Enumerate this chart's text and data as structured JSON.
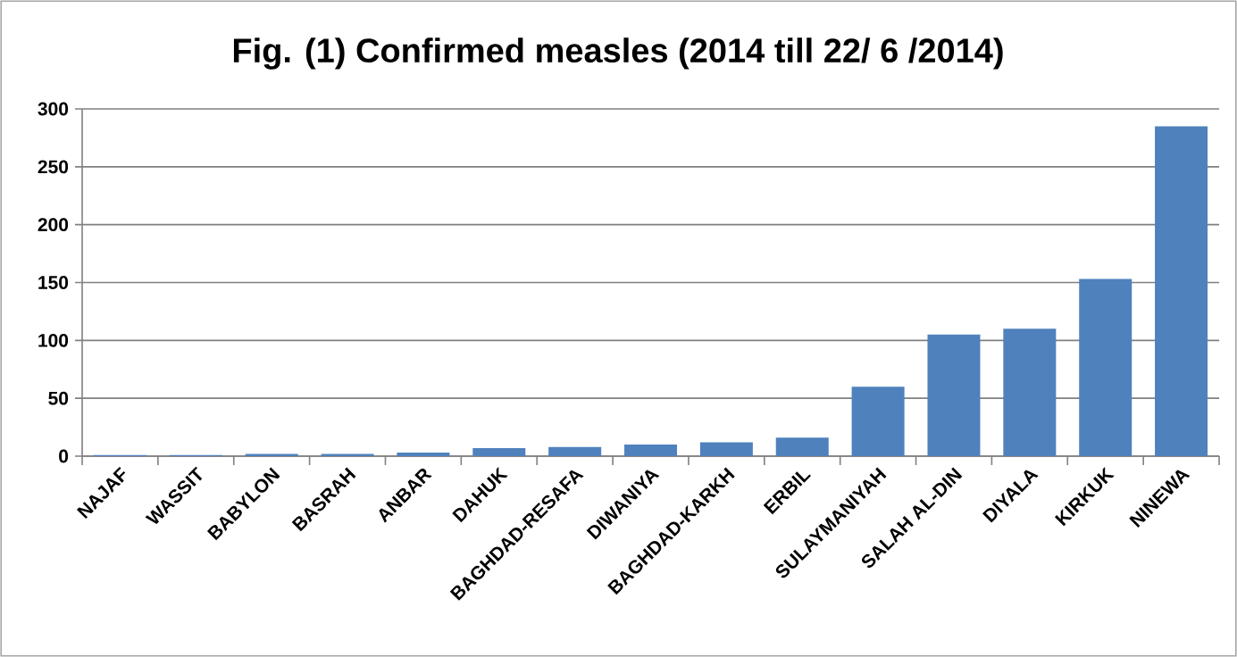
{
  "chart_data": {
    "type": "bar",
    "title": "Fig. (1) Confirmed measles (2014 till 22/ 6 /2014)",
    "categories": [
      "NAJAF",
      "WASSIT",
      "BABYLON",
      "BASRAH",
      "ANBAR",
      "DAHUK",
      "BAGHDAD-RESAFA",
      "DIWANIYA",
      "BAGHDAD-KARKH",
      "ERBIL",
      "SULAYMANIYAH",
      "SALAH AL-DIN",
      "DIYALA",
      "KIRKUK",
      "NINEWA"
    ],
    "values": [
      1,
      1,
      2,
      2,
      3,
      7,
      8,
      10,
      12,
      16,
      60,
      105,
      110,
      153,
      285
    ],
    "color": "#4f81bd",
    "ylim": [
      0,
      300
    ],
    "yticks": [
      0,
      50,
      100,
      150,
      200,
      250,
      300
    ],
    "grid": "y"
  }
}
